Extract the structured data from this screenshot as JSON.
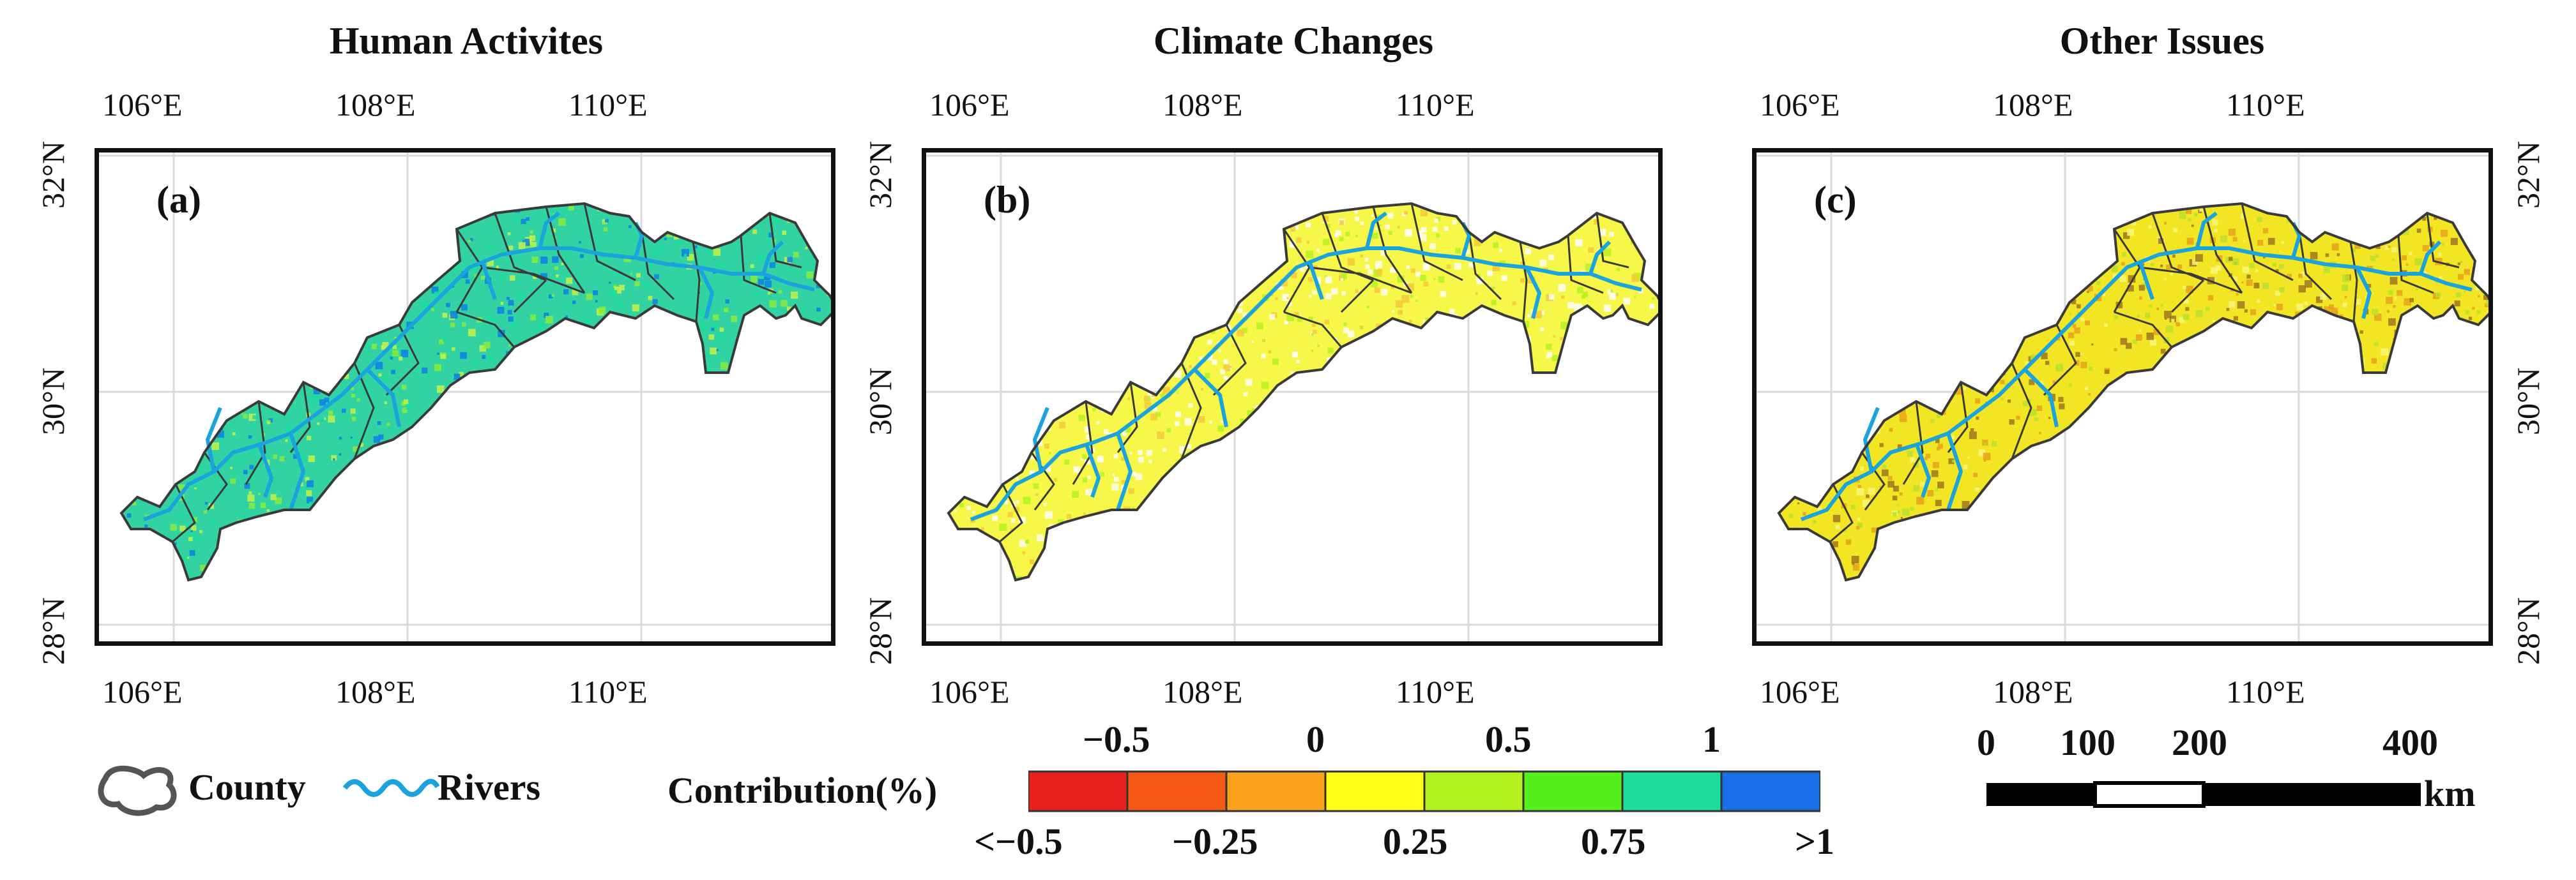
{
  "panels": [
    {
      "title": "Human Activites",
      "letter": "(a)",
      "scheme": "human"
    },
    {
      "title": "Climate Changes",
      "letter": "(b)",
      "scheme": "climate"
    },
    {
      "title": "Other Issues",
      "letter": "(c)",
      "scheme": "other"
    }
  ],
  "axes": {
    "lon_ticks": [
      "106°E",
      "108°E",
      "110°E"
    ],
    "lat_ticks": [
      "32°N",
      "30°N",
      "28°N"
    ]
  },
  "legend": {
    "county_label": "County",
    "rivers_label": "Rivers",
    "contribution_label": "Contribution(%)",
    "top_ticks": [
      "−0.5",
      "0",
      "0.5",
      "1"
    ],
    "bottom_ticks": [
      "<−0.5",
      "−0.25",
      "0.25",
      "0.75",
      ">1"
    ],
    "colors": [
      "#e8211c",
      "#f75a14",
      "#f9a11b",
      "#ffff1a",
      "#b4f21e",
      "#55ef1e",
      "#1ddc9d",
      "#1a6fe6"
    ]
  },
  "scale_bar": {
    "ticks": [
      "0",
      "100",
      "200",
      "400"
    ],
    "unit": "km"
  },
  "colors": {
    "river": "#1aa3dc",
    "county_border": "#3a3a3a",
    "grid": "#d9d9d9"
  }
}
